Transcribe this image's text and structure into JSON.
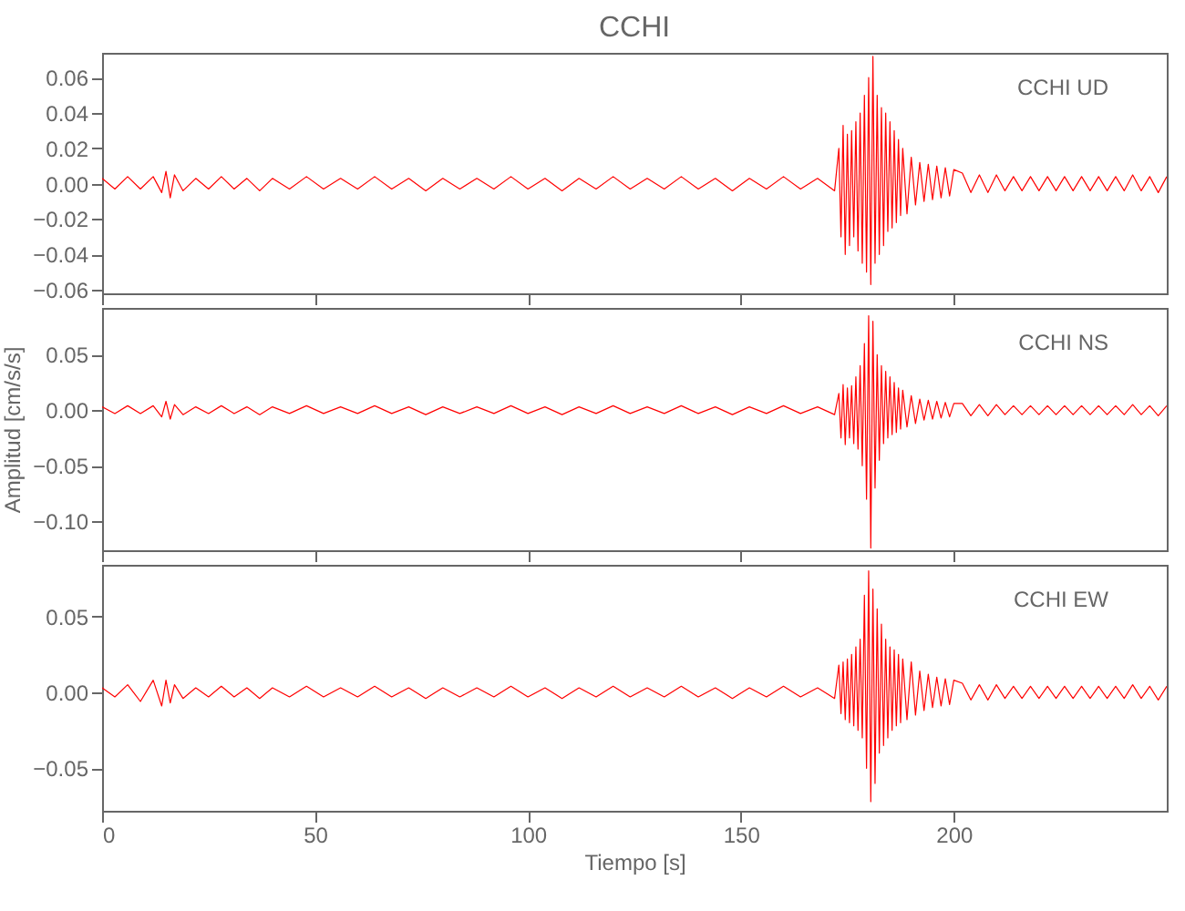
{
  "chart_data": [
    {
      "type": "line",
      "title": "CCHI",
      "xlim": [
        0,
        250
      ],
      "xticks": [
        0,
        50,
        100,
        150,
        200
      ],
      "ylim": [
        -0.062,
        0.074
      ],
      "yticks": [
        {
          "value": -0.06,
          "label": "−0.06"
        },
        {
          "value": -0.04,
          "label": "−0.04"
        },
        {
          "value": -0.02,
          "label": "−0.02"
        },
        {
          "value": 0,
          "label": "0.00"
        },
        {
          "value": 0.02,
          "label": "0.02"
        },
        {
          "value": 0.04,
          "label": "0.04"
        },
        {
          "value": 0.06,
          "label": "0.06"
        }
      ],
      "tick_labels": "y",
      "grid": false,
      "x": [
        0,
        3,
        6,
        9,
        12,
        14,
        15,
        16,
        17,
        19,
        22,
        25,
        28,
        31,
        34,
        37,
        40,
        44,
        48,
        52,
        56,
        60,
        64,
        68,
        72,
        76,
        80,
        84,
        88,
        92,
        96,
        100,
        104,
        108,
        112,
        116,
        120,
        124,
        128,
        132,
        136,
        140,
        144,
        148,
        152,
        156,
        160,
        164,
        168,
        172,
        173,
        173.5,
        174,
        174.5,
        175,
        175.5,
        176,
        176.5,
        177,
        177.5,
        178,
        178.5,
        179,
        179.5,
        180,
        180.5,
        181,
        181.5,
        182,
        182.5,
        183,
        183.5,
        184,
        184.5,
        185,
        185.5,
        186,
        186.5,
        187,
        187.5,
        188,
        189,
        190,
        191,
        192,
        193,
        194,
        195,
        196,
        197,
        198,
        199,
        200,
        202,
        204,
        206,
        208,
        210,
        212,
        214,
        216,
        218,
        220,
        222,
        224,
        226,
        228,
        230,
        232,
        234,
        236,
        238,
        240,
        242,
        244,
        246,
        248,
        250
      ],
      "series": [
        {
          "name": "CCHI   UD",
          "color": "#ff0000",
          "values": [
            0.003,
            -0.003,
            0.004,
            -0.003,
            0.004,
            -0.005,
            0.007,
            -0.008,
            0.005,
            -0.004,
            0.003,
            -0.003,
            0.004,
            -0.003,
            0.003,
            -0.004,
            0.003,
            -0.003,
            0.004,
            -0.003,
            0.003,
            -0.003,
            0.004,
            -0.003,
            0.003,
            -0.004,
            0.003,
            -0.003,
            0.003,
            -0.003,
            0.004,
            -0.003,
            0.003,
            -0.004,
            0.003,
            -0.003,
            0.004,
            -0.003,
            0.003,
            -0.003,
            0.004,
            -0.003,
            0.003,
            -0.004,
            0.003,
            -0.003,
            0.004,
            -0.003,
            0.003,
            -0.004,
            0.02,
            -0.03,
            0.033,
            -0.04,
            0.028,
            -0.035,
            0.03,
            -0.03,
            0.035,
            -0.038,
            0.04,
            -0.045,
            0.05,
            -0.05,
            0.06,
            -0.057,
            0.072,
            -0.045,
            0.05,
            -0.04,
            0.043,
            -0.035,
            0.04,
            -0.027,
            0.035,
            -0.025,
            0.03,
            -0.022,
            0.025,
            -0.018,
            0.02,
            -0.017,
            0.015,
            -0.012,
            0.012,
            -0.01,
            0.011,
            -0.009,
            0.01,
            -0.008,
            0.009,
            -0.007,
            0.008,
            0.006,
            -0.005,
            0.005,
            -0.005,
            0.005,
            -0.004,
            0.004,
            -0.004,
            0.004,
            -0.004,
            0.004,
            -0.004,
            0.004,
            -0.004,
            0.004,
            -0.004,
            0.004,
            -0.004,
            0.004,
            -0.004,
            0.005,
            -0.004,
            0.004,
            -0.005,
            0.004
          ]
        }
      ]
    },
    {
      "type": "line",
      "ylabel": "Amplitud [cm/s/s]",
      "xlim": [
        0,
        250
      ],
      "xticks": [
        0,
        50,
        100,
        150,
        200
      ],
      "ylim": [
        -0.126,
        0.092
      ],
      "yticks": [
        {
          "value": -0.1,
          "label": "−0.10"
        },
        {
          "value": -0.05,
          "label": "−0.05"
        },
        {
          "value": 0,
          "label": "0.00"
        },
        {
          "value": 0.05,
          "label": "0.05"
        }
      ],
      "tick_labels": "y",
      "grid": false,
      "x": [
        0,
        3,
        6,
        9,
        12,
        14,
        15,
        16,
        17,
        19,
        22,
        25,
        28,
        31,
        34,
        37,
        40,
        44,
        48,
        52,
        56,
        60,
        64,
        68,
        72,
        76,
        80,
        84,
        88,
        92,
        96,
        100,
        104,
        108,
        112,
        116,
        120,
        124,
        128,
        132,
        136,
        140,
        144,
        148,
        152,
        156,
        160,
        164,
        168,
        172,
        173,
        173.5,
        174,
        174.5,
        175,
        175.5,
        176,
        176.5,
        177,
        177.5,
        178,
        178.5,
        179,
        179.5,
        180,
        180.5,
        181,
        181.5,
        182,
        182.5,
        183,
        183.5,
        184,
        184.5,
        185,
        185.5,
        186,
        186.5,
        187,
        187.5,
        188,
        189,
        190,
        191,
        192,
        193,
        194,
        195,
        196,
        197,
        198,
        199,
        200,
        202,
        204,
        206,
        208,
        210,
        212,
        214,
        216,
        218,
        220,
        222,
        224,
        226,
        228,
        230,
        232,
        234,
        236,
        238,
        240,
        242,
        244,
        246,
        248,
        250
      ],
      "series": [
        {
          "name": "CCHI   NS",
          "color": "#ff0000",
          "values": [
            0.003,
            -0.003,
            0.004,
            -0.003,
            0.004,
            -0.006,
            0.008,
            -0.008,
            0.005,
            -0.004,
            0.003,
            -0.003,
            0.004,
            -0.003,
            0.003,
            -0.004,
            0.003,
            -0.003,
            0.004,
            -0.003,
            0.003,
            -0.003,
            0.004,
            -0.003,
            0.003,
            -0.004,
            0.003,
            -0.003,
            0.003,
            -0.003,
            0.004,
            -0.003,
            0.003,
            -0.004,
            0.003,
            -0.003,
            0.004,
            -0.003,
            0.003,
            -0.003,
            0.004,
            -0.003,
            0.003,
            -0.004,
            0.003,
            -0.003,
            0.004,
            -0.003,
            0.003,
            -0.004,
            0.015,
            -0.025,
            0.023,
            -0.031,
            0.02,
            -0.025,
            0.022,
            -0.03,
            0.03,
            -0.035,
            0.04,
            -0.05,
            0.06,
            -0.08,
            0.085,
            -0.124,
            0.08,
            -0.07,
            0.05,
            -0.045,
            0.04,
            -0.03,
            0.035,
            -0.025,
            0.03,
            -0.022,
            0.025,
            -0.02,
            0.02,
            -0.017,
            0.018,
            -0.015,
            0.013,
            -0.012,
            0.01,
            -0.009,
            0.009,
            -0.008,
            0.008,
            -0.007,
            0.007,
            -0.006,
            0.006,
            0.006,
            -0.005,
            0.005,
            -0.005,
            0.005,
            -0.004,
            0.004,
            -0.004,
            0.004,
            -0.004,
            0.004,
            -0.004,
            0.004,
            -0.004,
            0.004,
            -0.004,
            0.004,
            -0.004,
            0.004,
            -0.004,
            0.005,
            -0.004,
            0.004,
            -0.005,
            0.004
          ]
        }
      ]
    },
    {
      "type": "line",
      "xlabel": "Tiempo [s]",
      "xlim": [
        0,
        250
      ],
      "xticks": [
        0,
        50,
        100,
        150,
        200
      ],
      "ylim": [
        -0.078,
        0.084
      ],
      "yticks": [
        {
          "value": -0.05,
          "label": "−0.05"
        },
        {
          "value": 0,
          "label": "0.00"
        },
        {
          "value": 0.05,
          "label": "0.05"
        }
      ],
      "grid": false,
      "x": [
        0,
        3,
        6,
        9,
        12,
        14,
        15,
        16,
        17,
        19,
        22,
        25,
        28,
        31,
        34,
        37,
        40,
        44,
        48,
        52,
        56,
        60,
        64,
        68,
        72,
        76,
        80,
        84,
        88,
        92,
        96,
        100,
        104,
        108,
        112,
        116,
        120,
        124,
        128,
        132,
        136,
        140,
        144,
        148,
        152,
        156,
        160,
        164,
        168,
        172,
        173,
        173.5,
        174,
        174.5,
        175,
        175.5,
        176,
        176.5,
        177,
        177.5,
        178,
        178.5,
        179,
        179.5,
        180,
        180.5,
        181,
        181.5,
        182,
        182.5,
        183,
        183.5,
        184,
        184.5,
        185,
        185.5,
        186,
        186.5,
        187,
        187.5,
        188,
        189,
        190,
        191,
        192,
        193,
        194,
        195,
        196,
        197,
        198,
        199,
        200,
        202,
        204,
        206,
        208,
        210,
        212,
        214,
        216,
        218,
        220,
        222,
        224,
        226,
        228,
        230,
        232,
        234,
        236,
        238,
        240,
        242,
        244,
        246,
        248,
        250
      ],
      "series": [
        {
          "name": "CCHI   EW",
          "color": "#ff0000",
          "values": [
            0.003,
            -0.003,
            0.005,
            -0.006,
            0.008,
            -0.009,
            0.008,
            -0.007,
            0.005,
            -0.004,
            0.003,
            -0.003,
            0.004,
            -0.003,
            0.003,
            -0.004,
            0.003,
            -0.003,
            0.004,
            -0.003,
            0.003,
            -0.003,
            0.004,
            -0.003,
            0.003,
            -0.004,
            0.003,
            -0.003,
            0.003,
            -0.003,
            0.004,
            -0.003,
            0.003,
            -0.004,
            0.003,
            -0.003,
            0.004,
            -0.003,
            0.003,
            -0.003,
            0.004,
            -0.003,
            0.003,
            -0.004,
            0.003,
            -0.003,
            0.004,
            -0.003,
            0.003,
            -0.004,
            0.018,
            -0.014,
            0.02,
            -0.018,
            0.022,
            -0.02,
            0.025,
            -0.022,
            0.03,
            -0.025,
            0.035,
            -0.03,
            0.064,
            -0.05,
            0.08,
            -0.072,
            0.068,
            -0.06,
            0.055,
            -0.04,
            0.045,
            -0.035,
            0.035,
            -0.03,
            0.03,
            -0.025,
            0.028,
            -0.022,
            0.025,
            -0.02,
            0.022,
            -0.018,
            0.02,
            -0.015,
            0.014,
            -0.012,
            0.012,
            -0.01,
            0.01,
            -0.009,
            0.009,
            -0.008,
            0.008,
            0.006,
            -0.005,
            0.005,
            -0.005,
            0.005,
            -0.004,
            0.004,
            -0.004,
            0.004,
            -0.004,
            0.004,
            -0.004,
            0.004,
            -0.004,
            0.004,
            -0.004,
            0.004,
            -0.004,
            0.004,
            -0.004,
            0.005,
            -0.004,
            0.004,
            -0.005,
            0.004
          ]
        }
      ]
    }
  ]
}
